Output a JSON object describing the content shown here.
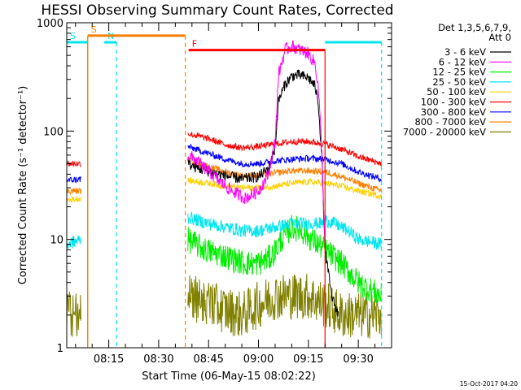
{
  "chart_data": {
    "type": "line",
    "title": "HESSI Observing Summary Count Rates, Corrected",
    "xlabel": "Start Time (06-May-15 08:02:22)",
    "ylabel": "Corrected Count Rate (s⁻¹ detector⁻¹)",
    "yscale": "log",
    "xlim": [
      "08:02:22",
      "09:40:00"
    ],
    "ylim": [
      1,
      1000
    ],
    "x_ticks": [
      "08:15",
      "08:30",
      "08:45",
      "09:00",
      "09:15",
      "09:30"
    ],
    "y_ticks": [
      {
        "value": 1,
        "label": "1"
      },
      {
        "value": 10,
        "label": "10"
      },
      {
        "value": 100,
        "label": "100"
      },
      {
        "value": 1000,
        "label": "1000"
      }
    ],
    "grid": false,
    "legend": {
      "position": "right",
      "header": [
        "Det 1,3,5,6,7,9,",
        "Att 0"
      ]
    },
    "intervals": [
      {
        "label": "S",
        "start": "08:02:22",
        "end": "08:08:40",
        "level": 660,
        "color": "#00e5ee",
        "dash_end": false
      },
      {
        "label": "N",
        "start": "08:13:40",
        "end": "08:17:20",
        "level": 660,
        "color": "#00e5ee",
        "dash_end": true
      },
      {
        "label": "S",
        "start": "08:08:40",
        "end": "08:38:00",
        "level": 760,
        "color": "#ff8000",
        "dash_end": true
      },
      {
        "label": "F",
        "start": "08:39:00",
        "end": "09:20:00",
        "level": 560,
        "color": "#ff0000",
        "dash_end": false
      },
      {
        "label": "",
        "start": "09:20:00",
        "end": "09:37:00",
        "level": 660,
        "color": "#00e5ee",
        "dash_end": true
      }
    ],
    "gaps": [
      [
        "08:06:40",
        "08:38:40"
      ],
      [
        "09:37:00",
        "09:40:00"
      ]
    ],
    "series": [
      {
        "name": "3 - 6 keV",
        "color": "#000000",
        "noise": 0.05,
        "x": [
          "08:02:22",
          "08:06:40",
          "08:38:40",
          "08:42:00",
          "08:48:00",
          "08:55:00",
          "09:00:00",
          "09:03:00",
          "09:05:00",
          "09:06:00",
          "09:08:00",
          "09:10:00",
          "09:12:00",
          "09:15:00",
          "09:17:00",
          "09:18:00",
          "09:19:00",
          "09:20:00",
          "09:22:00",
          "09:24:00"
        ],
        "y": [
          null,
          null,
          50,
          45,
          40,
          36,
          38,
          45,
          70,
          190,
          270,
          320,
          330,
          310,
          260,
          180,
          60,
          8,
          3,
          2
        ]
      },
      {
        "name": "6 - 12 keV",
        "color": "#ff00ff",
        "noise": 0.06,
        "x": [
          "08:38:40",
          "08:41:00",
          "08:44:00",
          "08:48:00",
          "08:52:00",
          "08:56:00",
          "09:00:00",
          "09:03:00",
          "09:05:00",
          "09:06:00",
          "09:08:00",
          "09:10:00",
          "09:12:00",
          "09:15:00",
          "09:17:00",
          "09:18:00",
          "09:19:00",
          "09:20:00"
        ],
        "y": [
          60,
          55,
          45,
          35,
          28,
          24,
          28,
          40,
          80,
          330,
          560,
          610,
          570,
          520,
          420,
          250,
          70,
          8
        ]
      },
      {
        "name": "12 - 25 keV",
        "color": "#00ee00",
        "noise": 0.12,
        "x": [
          "08:02:22",
          "08:06:40",
          "08:38:40",
          "08:44:00",
          "08:50:00",
          "08:56:00",
          "09:00:00",
          "09:04:00",
          "09:07:00",
          "09:10:00",
          "09:13:00",
          "09:16:00",
          "09:18:00",
          "09:20:00",
          "09:25:00",
          "09:30:00",
          "09:37:00"
        ],
        "y": [
          null,
          null,
          10,
          8,
          7,
          6,
          6,
          7,
          10,
          13,
          12,
          10,
          9,
          8,
          6,
          4,
          3
        ]
      },
      {
        "name": "25 - 50 keV",
        "color": "#00e5ee",
        "noise": 0.06,
        "x": [
          "08:02:22",
          "08:06:40",
          "08:38:40",
          "08:45:00",
          "08:50:00",
          "08:55:00",
          "09:00:00",
          "09:05:00",
          "09:10:00",
          "09:15:00",
          "09:19:00",
          "09:20:00",
          "09:23:00",
          "09:27:00",
          "09:30:00",
          "09:37:00"
        ],
        "y": [
          9,
          10,
          16,
          14,
          13,
          12,
          12,
          13,
          14,
          14,
          14,
          15,
          14,
          12,
          10,
          9
        ]
      },
      {
        "name": "50 - 100 keV",
        "color": "#ffd000",
        "noise": 0.03,
        "x": [
          "08:02:22",
          "08:06:40",
          "08:38:40",
          "08:45:00",
          "08:50:00",
          "08:55:00",
          "09:00:00",
          "09:05:00",
          "09:10:00",
          "09:15:00",
          "09:20:00",
          "09:25:00",
          "09:30:00",
          "09:37:00"
        ],
        "y": [
          23,
          24,
          35,
          33,
          31,
          30,
          30,
          31,
          33,
          34,
          33,
          31,
          28,
          25
        ]
      },
      {
        "name": "100 - 300 keV",
        "color": "#ff0000",
        "noise": 0.03,
        "x": [
          "08:02:22",
          "08:06:40",
          "08:38:40",
          "08:45:00",
          "08:50:00",
          "08:55:00",
          "09:00:00",
          "09:05:00",
          "09:10:00",
          "09:15:00",
          "09:20:00",
          "09:25:00",
          "09:30:00",
          "09:37:00"
        ],
        "y": [
          50,
          50,
          95,
          85,
          75,
          70,
          72,
          76,
          80,
          80,
          76,
          68,
          58,
          50
        ]
      },
      {
        "name": "300 - 800 keV",
        "color": "#0000ff",
        "noise": 0.03,
        "x": [
          "08:02:22",
          "08:06:40",
          "08:38:40",
          "08:45:00",
          "08:50:00",
          "08:55:00",
          "09:00:00",
          "09:05:00",
          "09:10:00",
          "09:15:00",
          "09:20:00",
          "09:25:00",
          "09:30:00",
          "09:37:00"
        ],
        "y": [
          35,
          36,
          72,
          62,
          55,
          50,
          50,
          53,
          55,
          56,
          55,
          50,
          42,
          36
        ]
      },
      {
        "name": "800 - 7000 keV",
        "color": "#ff8000",
        "noise": 0.03,
        "x": [
          "08:02:22",
          "08:06:40",
          "08:38:40",
          "08:45:00",
          "08:50:00",
          "08:55:00",
          "09:00:00",
          "09:05:00",
          "09:10:00",
          "09:15:00",
          "09:20:00",
          "09:25:00",
          "09:30:00",
          "09:37:00"
        ],
        "y": [
          28,
          28,
          55,
          47,
          42,
          39,
          39,
          41,
          43,
          43,
          42,
          38,
          33,
          28
        ]
      },
      {
        "name": "7000 - 20000 keV",
        "color": "#808000",
        "noise": 0.22,
        "x": [
          "08:02:22",
          "08:06:40",
          "08:38:40",
          "08:45:00",
          "08:55:00",
          "09:00:00",
          "09:05:00",
          "09:10:00",
          "09:15:00",
          "09:20:00",
          "09:25:00",
          "09:30:00",
          "09:37:00"
        ],
        "y": [
          2,
          2,
          3,
          2.5,
          2,
          2.5,
          3,
          3,
          3,
          2.5,
          2,
          2,
          2
        ]
      }
    ]
  },
  "footer": {
    "timestamp": "15-Oct-2017 04:20"
  }
}
